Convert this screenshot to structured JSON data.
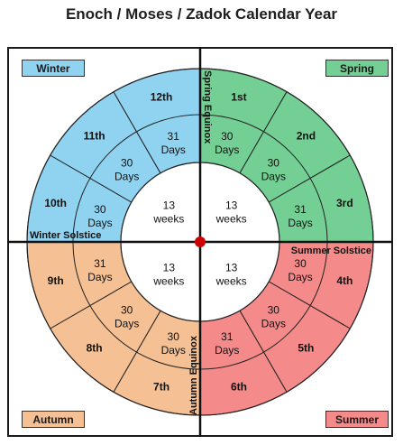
{
  "title": "Enoch / Moses / Zadok  Calendar Year",
  "seasons": {
    "winter": "Winter",
    "spring": "Spring",
    "autumn": "Autumn",
    "summer": "Summer"
  },
  "colors": {
    "winter": "#8fd3f1",
    "spring": "#74cf94",
    "autumn": "#f4c094",
    "summer": "#f58a8a",
    "center_dot": "#cc0000"
  },
  "markers": {
    "spring_equinox": "Spring Equinox",
    "summer_solstice": "Summer Solstice",
    "autumn_equinox": "Autumn Equinox",
    "winter_solstice": "Winter Solstice"
  },
  "quarters": [
    {
      "line1": "13",
      "line2": "weeks"
    },
    {
      "line1": "13",
      "line2": "weeks"
    },
    {
      "line1": "13",
      "line2": "weeks"
    },
    {
      "line1": "13",
      "line2": "weeks"
    }
  ],
  "months": [
    {
      "label": "1st",
      "days": "30",
      "unit": "Days",
      "season": "spring"
    },
    {
      "label": "2nd",
      "days": "30",
      "unit": "Days",
      "season": "spring"
    },
    {
      "label": "3rd",
      "days": "31",
      "unit": "Days",
      "season": "spring"
    },
    {
      "label": "4th",
      "days": "30",
      "unit": "Days",
      "season": "summer"
    },
    {
      "label": "5th",
      "days": "30",
      "unit": "Days",
      "season": "summer"
    },
    {
      "label": "6th",
      "days": "31",
      "unit": "Days",
      "season": "summer"
    },
    {
      "label": "7th",
      "days": "30",
      "unit": "Days",
      "season": "autumn"
    },
    {
      "label": "8th",
      "days": "30",
      "unit": "Days",
      "season": "autumn"
    },
    {
      "label": "9th",
      "days": "31",
      "unit": "Days",
      "season": "autumn"
    },
    {
      "label": "10th",
      "days": "30",
      "unit": "Days",
      "season": "winter"
    },
    {
      "label": "11th",
      "days": "30",
      "unit": "Days",
      "season": "winter"
    },
    {
      "label": "12th",
      "days": "31",
      "unit": "Days",
      "season": "winter"
    }
  ]
}
